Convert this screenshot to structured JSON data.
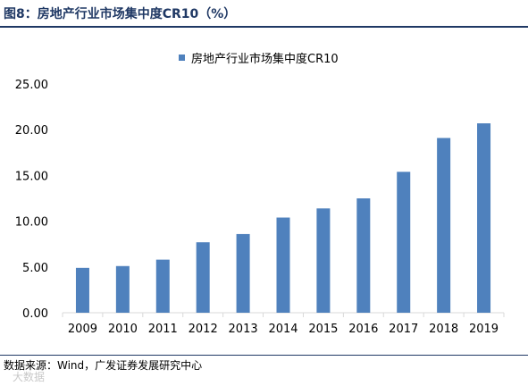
{
  "figure": {
    "title": "图8：房地产行业市场集中度CR10（%）",
    "source": "数据来源：Wind，广发证券发展研究中心",
    "watermark": "大数据"
  },
  "colors": {
    "bar": "#4f81bd",
    "title": "#1f3864",
    "axis": "#d9d9d9"
  },
  "chart_data": {
    "type": "bar",
    "categories": [
      "2009",
      "2010",
      "2011",
      "2012",
      "2013",
      "2014",
      "2015",
      "2016",
      "2017",
      "2018",
      "2019"
    ],
    "series": [
      {
        "name": "房地产行业市场集中度CR10",
        "values": [
          4.9,
          5.1,
          5.8,
          7.7,
          8.6,
          10.4,
          11.4,
          12.5,
          15.4,
          19.1,
          20.7
        ]
      }
    ],
    "ylim": [
      0,
      25
    ],
    "yticks": [
      "0.00",
      "5.00",
      "10.00",
      "15.00",
      "20.00",
      "25.00"
    ],
    "legend_position": "top-center",
    "grid": false
  }
}
